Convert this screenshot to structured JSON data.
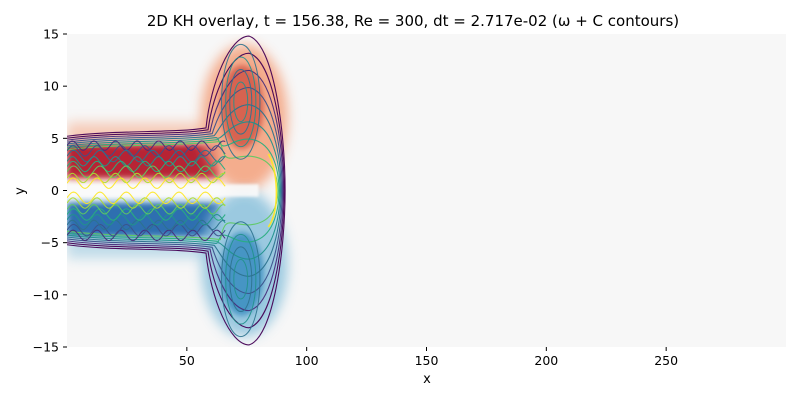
{
  "chart_data": {
    "type": "heatmap",
    "title": "2D KH overlay, t =  156.38, Re = 300, dt = 2.717e-02 (ω + C contours)",
    "xlabel": "x",
    "ylabel": "y",
    "xlim": [
      0,
      300
    ],
    "ylim": [
      -15,
      15
    ],
    "xticks": [
      50,
      100,
      150,
      200,
      250
    ],
    "yticks": [
      15,
      10,
      5,
      0,
      -5,
      -10,
      -15
    ],
    "colormap_field": "vorticity ω",
    "colormap": "RdBu (diverging)",
    "contour_field": "C",
    "contour_colormap": "viridis",
    "features": {
      "shear_layer_top_y": 3,
      "shear_layer_bottom_y": -3,
      "positive_vortex_center": [
        73,
        8
      ],
      "negative_vortex_center": [
        73,
        -8
      ],
      "front_x": 90,
      "background_value": 0
    },
    "grid": false,
    "colors": {
      "positive": "#b2182b",
      "positive_light": "#f4a582",
      "negative": "#2166ac",
      "negative_light": "#92c5de",
      "background": "#f7f7f7"
    }
  }
}
